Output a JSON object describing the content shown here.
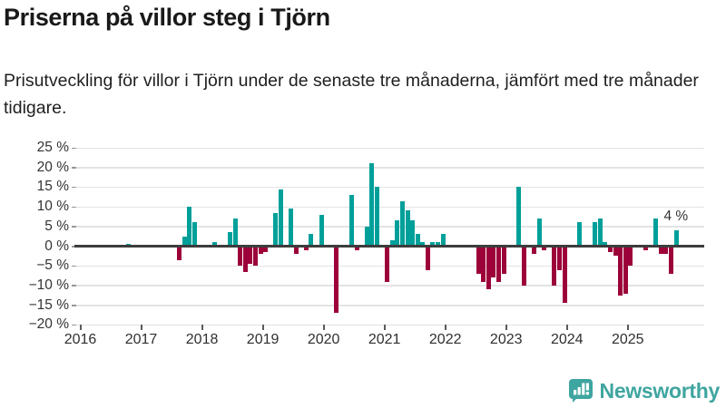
{
  "header": {
    "title": "Priserna på villor steg i Tjörn",
    "subtitle": "Prisutveckling för villor i Tjörn under de senaste tre månaderna, jämfört med tre månader tidigare."
  },
  "chart_data": {
    "type": "bar",
    "title": "Priserna på villor steg i Tjörn",
    "unit": "%",
    "ylim": [
      -20,
      25
    ],
    "grid": "horizontal",
    "legend": "none",
    "colors": {
      "positive": "#00a09a",
      "negative": "#9c0239",
      "zero_line": "#3d3d3d"
    },
    "yticks": [
      {
        "value": 25,
        "label": "25 %"
      },
      {
        "value": 20,
        "label": "20 %"
      },
      {
        "value": 15,
        "label": "15 %"
      },
      {
        "value": 10,
        "label": "10 %"
      },
      {
        "value": 5,
        "label": "5 %"
      },
      {
        "value": 0,
        "label": "0 %"
      },
      {
        "value": -5,
        "label": "−5 %"
      },
      {
        "value": -10,
        "label": "−10 %"
      },
      {
        "value": -15,
        "label": "−15 %"
      },
      {
        "value": -20,
        "label": "−20 %"
      }
    ],
    "xticks": [
      "2016",
      "2017",
      "2018",
      "2019",
      "2020",
      "2021",
      "2022",
      "2023",
      "2024",
      "2025"
    ],
    "annotation": {
      "text": "4 %",
      "month": "2025-10"
    },
    "points": [
      {
        "m": "2016-10",
        "v": 0.5
      },
      {
        "m": "2017-08",
        "v": -3.5
      },
      {
        "m": "2017-09",
        "v": 2.5
      },
      {
        "m": "2017-10",
        "v": 10
      },
      {
        "m": "2017-11",
        "v": 6
      },
      {
        "m": "2018-03",
        "v": 1
      },
      {
        "m": "2018-06",
        "v": 3.5
      },
      {
        "m": "2018-07",
        "v": 7
      },
      {
        "m": "2018-08",
        "v": -5
      },
      {
        "m": "2018-09",
        "v": -6.5
      },
      {
        "m": "2018-10",
        "v": -4.5
      },
      {
        "m": "2018-11",
        "v": -5
      },
      {
        "m": "2018-12",
        "v": -2
      },
      {
        "m": "2019-01",
        "v": -1.5
      },
      {
        "m": "2019-03",
        "v": 8.5
      },
      {
        "m": "2019-04",
        "v": 14.5
      },
      {
        "m": "2019-06",
        "v": 9.5
      },
      {
        "m": "2019-07",
        "v": -2
      },
      {
        "m": "2019-09",
        "v": -1
      },
      {
        "m": "2019-10",
        "v": 3
      },
      {
        "m": "2019-12",
        "v": 8
      },
      {
        "m": "2020-03",
        "v": -17
      },
      {
        "m": "2020-06",
        "v": 13
      },
      {
        "m": "2020-07",
        "v": -1
      },
      {
        "m": "2020-09",
        "v": 5
      },
      {
        "m": "2020-10",
        "v": 21
      },
      {
        "m": "2020-11",
        "v": 15
      },
      {
        "m": "2021-01",
        "v": -9
      },
      {
        "m": "2021-02",
        "v": 1.5
      },
      {
        "m": "2021-03",
        "v": 6.5
      },
      {
        "m": "2021-04",
        "v": 11.5
      },
      {
        "m": "2021-05",
        "v": 9
      },
      {
        "m": "2021-06",
        "v": 6.5
      },
      {
        "m": "2021-07",
        "v": 3
      },
      {
        "m": "2021-08",
        "v": 1
      },
      {
        "m": "2021-09",
        "v": -6
      },
      {
        "m": "2021-10",
        "v": 1
      },
      {
        "m": "2021-11",
        "v": 1
      },
      {
        "m": "2021-12",
        "v": 3
      },
      {
        "m": "2022-07",
        "v": -7
      },
      {
        "m": "2022-08",
        "v": -9
      },
      {
        "m": "2022-09",
        "v": -11
      },
      {
        "m": "2022-10",
        "v": -8
      },
      {
        "m": "2022-11",
        "v": -9
      },
      {
        "m": "2022-12",
        "v": -7
      },
      {
        "m": "2023-03",
        "v": 15
      },
      {
        "m": "2023-04",
        "v": -10
      },
      {
        "m": "2023-06",
        "v": -2
      },
      {
        "m": "2023-07",
        "v": 7
      },
      {
        "m": "2023-08",
        "v": -1
      },
      {
        "m": "2023-10",
        "v": -10
      },
      {
        "m": "2023-11",
        "v": -6
      },
      {
        "m": "2023-12",
        "v": -14.5
      },
      {
        "m": "2024-03",
        "v": 6
      },
      {
        "m": "2024-06",
        "v": 6
      },
      {
        "m": "2024-07",
        "v": 7
      },
      {
        "m": "2024-08",
        "v": 1
      },
      {
        "m": "2024-09",
        "v": -1.5
      },
      {
        "m": "2024-10",
        "v": -2.5
      },
      {
        "m": "2024-11",
        "v": -12.5
      },
      {
        "m": "2024-12",
        "v": -12
      },
      {
        "m": "2025-01",
        "v": -5
      },
      {
        "m": "2025-04",
        "v": -1
      },
      {
        "m": "2025-06",
        "v": 7
      },
      {
        "m": "2025-07",
        "v": -2
      },
      {
        "m": "2025-08",
        "v": -2
      },
      {
        "m": "2025-09",
        "v": -7
      },
      {
        "m": "2025-10",
        "v": 4
      }
    ]
  },
  "footer": {
    "brand": "Newsworthy",
    "logo_icon": "newsworthy-speech-bubble-chart-icon",
    "brand_color": "#3fa5a0"
  }
}
